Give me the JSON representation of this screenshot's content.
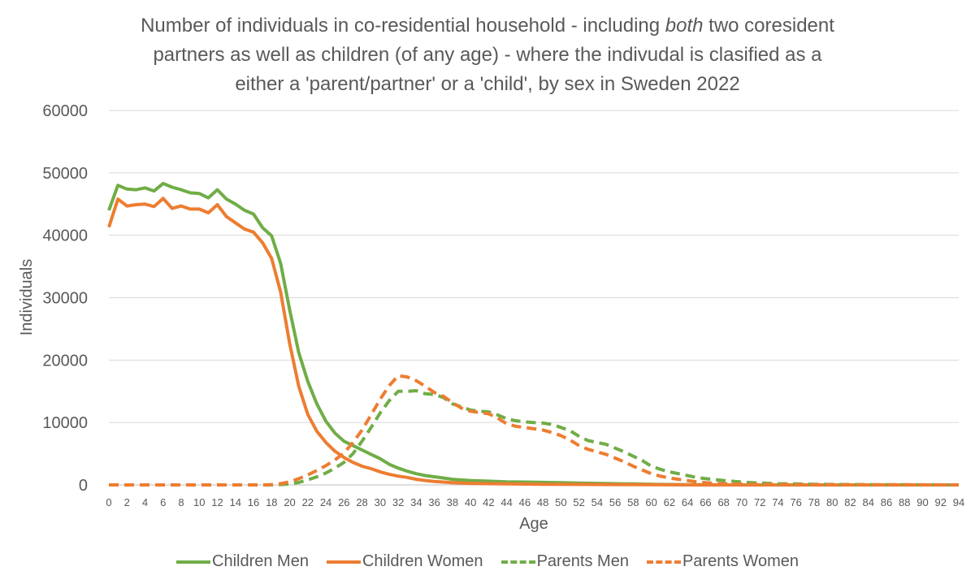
{
  "title": {
    "line1_a": "Number of individuals in co-residential household -  including ",
    "line1_em": "both",
    "line1_b": " two coresident",
    "line2": "partners as well as children (of any age)  - where the indivudal is clasified as a",
    "line3": "either a 'parent/partner' or a 'child', by sex in Sweden 2022"
  },
  "chart_data": {
    "type": "line",
    "xlabel": "Age",
    "ylabel": "Individuals",
    "xlim": [
      0,
      94
    ],
    "ylim": [
      0,
      60000
    ],
    "y_ticks": [
      0,
      10000,
      20000,
      30000,
      40000,
      50000,
      60000
    ],
    "x_ticks": [
      0,
      2,
      4,
      6,
      8,
      10,
      12,
      14,
      16,
      18,
      20,
      22,
      24,
      26,
      28,
      30,
      32,
      34,
      36,
      38,
      40,
      42,
      44,
      46,
      48,
      50,
      52,
      54,
      56,
      58,
      60,
      62,
      64,
      66,
      68,
      70,
      72,
      74,
      76,
      78,
      80,
      82,
      84,
      86,
      88,
      90,
      92,
      94
    ],
    "grid": "horizontal",
    "legend_position": "bottom",
    "series": [
      {
        "name": "Children Men",
        "color": "#70AD47",
        "dash": "solid",
        "points": [
          [
            0,
            44000
          ],
          [
            1,
            48000
          ],
          [
            2,
            47400
          ],
          [
            3,
            47300
          ],
          [
            4,
            47600
          ],
          [
            5,
            47100
          ],
          [
            6,
            48300
          ],
          [
            7,
            47700
          ],
          [
            8,
            47300
          ],
          [
            9,
            46800
          ],
          [
            10,
            46700
          ],
          [
            11,
            46000
          ],
          [
            12,
            47300
          ],
          [
            13,
            45800
          ],
          [
            14,
            45000
          ],
          [
            15,
            44000
          ],
          [
            16,
            43400
          ],
          [
            17,
            41200
          ],
          [
            18,
            39900
          ],
          [
            19,
            35500
          ],
          [
            20,
            28000
          ],
          [
            21,
            21200
          ],
          [
            22,
            16600
          ],
          [
            23,
            13000
          ],
          [
            24,
            10200
          ],
          [
            25,
            8300
          ],
          [
            26,
            7000
          ],
          [
            27,
            6300
          ],
          [
            28,
            5600
          ],
          [
            29,
            4900
          ],
          [
            30,
            4200
          ],
          [
            31,
            3300
          ],
          [
            32,
            2700
          ],
          [
            33,
            2200
          ],
          [
            34,
            1800
          ],
          [
            35,
            1500
          ],
          [
            36,
            1300
          ],
          [
            37,
            1100
          ],
          [
            38,
            900
          ],
          [
            40,
            700
          ],
          [
            42,
            600
          ],
          [
            44,
            500
          ],
          [
            46,
            450
          ],
          [
            48,
            400
          ],
          [
            50,
            350
          ],
          [
            52,
            300
          ],
          [
            54,
            250
          ],
          [
            56,
            200
          ],
          [
            58,
            150
          ],
          [
            60,
            100
          ],
          [
            62,
            60
          ],
          [
            64,
            40
          ],
          [
            66,
            20
          ],
          [
            70,
            0
          ],
          [
            80,
            0
          ],
          [
            94,
            0
          ]
        ]
      },
      {
        "name": "Children Women",
        "color": "#ED7D31",
        "dash": "solid",
        "points": [
          [
            0,
            41300
          ],
          [
            1,
            45800
          ],
          [
            2,
            44700
          ],
          [
            3,
            44900
          ],
          [
            4,
            45000
          ],
          [
            5,
            44600
          ],
          [
            6,
            45900
          ],
          [
            7,
            44300
          ],
          [
            8,
            44700
          ],
          [
            9,
            44200
          ],
          [
            10,
            44200
          ],
          [
            11,
            43600
          ],
          [
            12,
            44900
          ],
          [
            13,
            43000
          ],
          [
            14,
            42000
          ],
          [
            15,
            41000
          ],
          [
            16,
            40500
          ],
          [
            17,
            38800
          ],
          [
            18,
            36300
          ],
          [
            19,
            30900
          ],
          [
            20,
            22600
          ],
          [
            21,
            15800
          ],
          [
            22,
            11300
          ],
          [
            23,
            8600
          ],
          [
            24,
            6800
          ],
          [
            25,
            5400
          ],
          [
            26,
            4400
          ],
          [
            27,
            3600
          ],
          [
            28,
            3000
          ],
          [
            29,
            2600
          ],
          [
            30,
            2100
          ],
          [
            31,
            1700
          ],
          [
            32,
            1400
          ],
          [
            33,
            1200
          ],
          [
            34,
            900
          ],
          [
            35,
            700
          ],
          [
            36,
            550
          ],
          [
            37,
            450
          ],
          [
            38,
            350
          ],
          [
            40,
            250
          ],
          [
            42,
            200
          ],
          [
            44,
            150
          ],
          [
            48,
            100
          ],
          [
            52,
            80
          ],
          [
            56,
            50
          ],
          [
            60,
            30
          ],
          [
            66,
            0
          ],
          [
            80,
            0
          ],
          [
            94,
            0
          ]
        ]
      },
      {
        "name": "Parents Men",
        "color": "#70AD47",
        "dash": "dashed",
        "points": [
          [
            0,
            0
          ],
          [
            18,
            0
          ],
          [
            19,
            50
          ],
          [
            20,
            150
          ],
          [
            21,
            400
          ],
          [
            22,
            800
          ],
          [
            23,
            1300
          ],
          [
            24,
            1900
          ],
          [
            25,
            2700
          ],
          [
            26,
            3600
          ],
          [
            27,
            5000
          ],
          [
            28,
            7000
          ],
          [
            29,
            9200
          ],
          [
            30,
            11500
          ],
          [
            31,
            13500
          ],
          [
            32,
            15000
          ],
          [
            33,
            15000
          ],
          [
            34,
            15100
          ],
          [
            35,
            14600
          ],
          [
            36,
            14500
          ],
          [
            37,
            14000
          ],
          [
            38,
            13000
          ],
          [
            39,
            12500
          ],
          [
            40,
            12000
          ],
          [
            41,
            11800
          ],
          [
            42,
            11700
          ],
          [
            43,
            11200
          ],
          [
            44,
            10600
          ],
          [
            45,
            10300
          ],
          [
            46,
            10100
          ],
          [
            47,
            10000
          ],
          [
            48,
            9900
          ],
          [
            49,
            9700
          ],
          [
            50,
            9200
          ],
          [
            51,
            8700
          ],
          [
            52,
            7800
          ],
          [
            53,
            7100
          ],
          [
            54,
            6800
          ],
          [
            55,
            6500
          ],
          [
            56,
            5900
          ],
          [
            57,
            5300
          ],
          [
            58,
            4600
          ],
          [
            59,
            3900
          ],
          [
            60,
            3000
          ],
          [
            61,
            2500
          ],
          [
            62,
            2100
          ],
          [
            63,
            1800
          ],
          [
            64,
            1500
          ],
          [
            65,
            1200
          ],
          [
            66,
            1000
          ],
          [
            68,
            700
          ],
          [
            70,
            450
          ],
          [
            72,
            300
          ],
          [
            74,
            200
          ],
          [
            76,
            150
          ],
          [
            78,
            100
          ],
          [
            80,
            80
          ],
          [
            84,
            40
          ],
          [
            88,
            20
          ],
          [
            94,
            0
          ]
        ]
      },
      {
        "name": "Parents Women",
        "color": "#ED7D31",
        "dash": "dashed",
        "points": [
          [
            0,
            0
          ],
          [
            17,
            0
          ],
          [
            18,
            50
          ],
          [
            19,
            200
          ],
          [
            20,
            500
          ],
          [
            21,
            1000
          ],
          [
            22,
            1600
          ],
          [
            23,
            2300
          ],
          [
            24,
            3100
          ],
          [
            25,
            4000
          ],
          [
            26,
            5100
          ],
          [
            27,
            6800
          ],
          [
            28,
            8800
          ],
          [
            29,
            11200
          ],
          [
            30,
            13700
          ],
          [
            31,
            15900
          ],
          [
            32,
            17500
          ],
          [
            33,
            17300
          ],
          [
            34,
            16700
          ],
          [
            35,
            15800
          ],
          [
            36,
            14800
          ],
          [
            37,
            14200
          ],
          [
            38,
            13200
          ],
          [
            39,
            12300
          ],
          [
            40,
            11800
          ],
          [
            41,
            11600
          ],
          [
            42,
            11400
          ],
          [
            43,
            10700
          ],
          [
            44,
            9800
          ],
          [
            45,
            9400
          ],
          [
            46,
            9200
          ],
          [
            47,
            9000
          ],
          [
            48,
            8800
          ],
          [
            49,
            8400
          ],
          [
            50,
            7900
          ],
          [
            51,
            7200
          ],
          [
            52,
            6300
          ],
          [
            53,
            5700
          ],
          [
            54,
            5300
          ],
          [
            55,
            4900
          ],
          [
            56,
            4300
          ],
          [
            57,
            3700
          ],
          [
            58,
            3000
          ],
          [
            59,
            2400
          ],
          [
            60,
            1800
          ],
          [
            61,
            1400
          ],
          [
            62,
            1100
          ],
          [
            63,
            900
          ],
          [
            64,
            700
          ],
          [
            65,
            500
          ],
          [
            66,
            350
          ],
          [
            68,
            200
          ],
          [
            70,
            120
          ],
          [
            72,
            80
          ],
          [
            76,
            40
          ],
          [
            80,
            20
          ],
          [
            94,
            0
          ]
        ]
      }
    ]
  }
}
